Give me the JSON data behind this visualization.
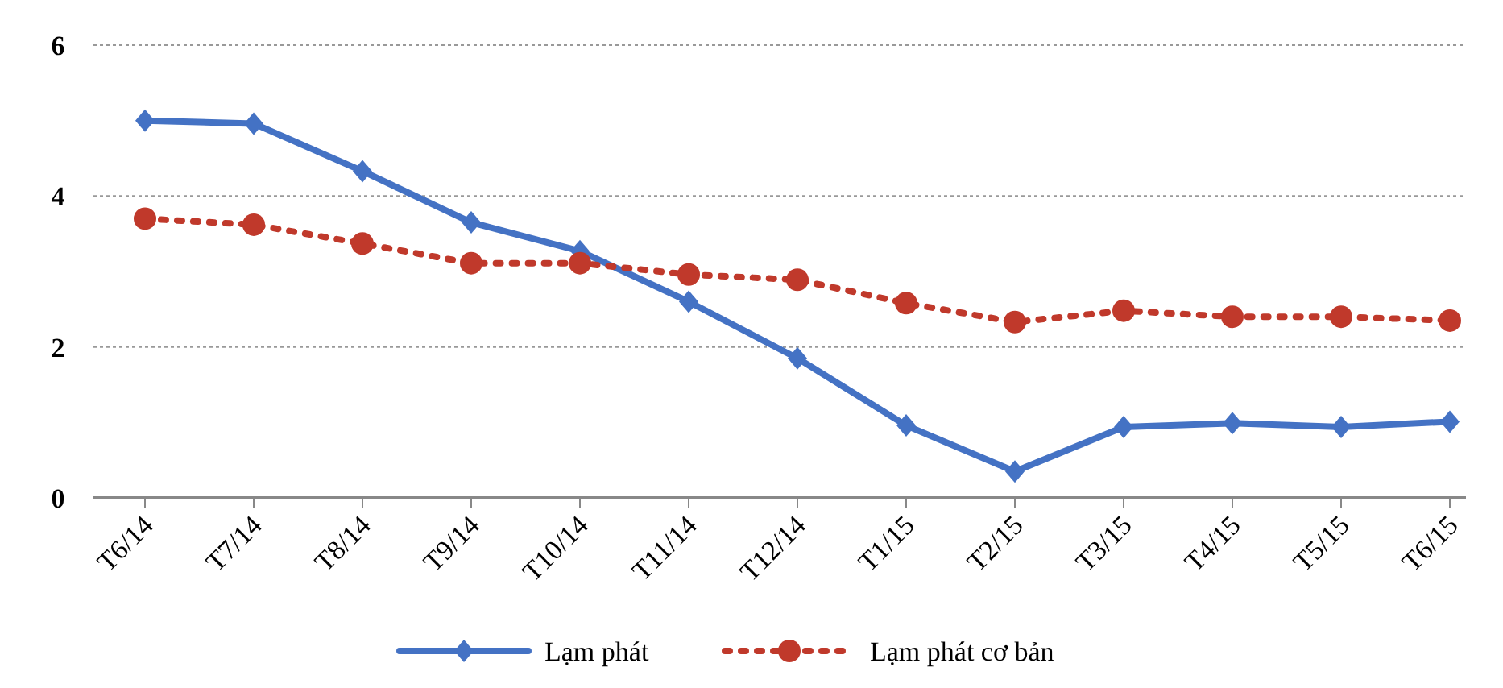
{
  "chart_data": {
    "type": "line",
    "categories": [
      "T6/14",
      "T7/14",
      "T8/14",
      "T9/14",
      "T10/14",
      "T11/14",
      "T12/14",
      "T1/15",
      "T2/15",
      "T3/15",
      "T4/15",
      "T5/15",
      "T6/15"
    ],
    "series": [
      {
        "name": "Lạm phát",
        "color": "#4472c4",
        "marker": "diamond",
        "line_style": "solid",
        "values": [
          5.0,
          4.96,
          4.33,
          3.65,
          3.27,
          2.6,
          1.85,
          0.96,
          0.35,
          0.94,
          0.99,
          0.94,
          1.01
        ]
      },
      {
        "name": "Lạm phát cơ bản",
        "color": "#c0392b",
        "marker": "circle",
        "line_style": "dotted",
        "values": [
          3.7,
          3.62,
          3.37,
          3.11,
          3.11,
          2.96,
          2.89,
          2.58,
          2.33,
          2.48,
          2.4,
          2.4,
          2.35
        ]
      }
    ],
    "ylim": [
      0,
      6
    ],
    "yticks": [
      0,
      2,
      4,
      6
    ],
    "grid": "y",
    "legend": "bottom"
  }
}
